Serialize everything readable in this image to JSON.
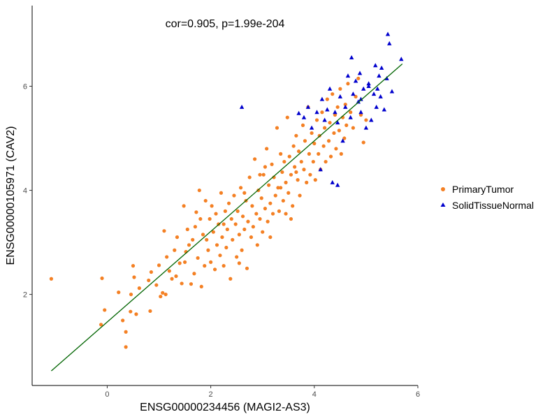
{
  "chart_data": {
    "type": "scatter",
    "title": "",
    "annotation": "cor=0.905, p=1.99e-204",
    "xlabel": "ENSG00000234456 (MAGI2-AS3)",
    "ylabel": "ENSG00000105971 (CAV2)",
    "xlim": [
      -1.45,
      6.0
    ],
    "ylim": [
      0.25,
      7.55
    ],
    "x_ticks": [
      0,
      2,
      4,
      6
    ],
    "y_ticks": [
      2,
      4,
      6
    ],
    "grid": false,
    "legend_position": "right",
    "regression_line": {
      "color": "#006400",
      "x": [
        -1.08,
        5.7
      ],
      "y": [
        0.53,
        6.43
      ]
    },
    "series": [
      {
        "name": "PrimaryTumor",
        "marker": "circle",
        "color": "#F48024",
        "points": [
          [
            -1.08,
            2.3
          ],
          [
            -0.1,
            2.31
          ],
          [
            -0.05,
            1.7
          ],
          [
            -0.12,
            1.42
          ],
          [
            0.22,
            2.04
          ],
          [
            0.3,
            1.5
          ],
          [
            0.36,
            1.28
          ],
          [
            0.36,
            0.99
          ],
          [
            0.45,
            1.67
          ],
          [
            0.46,
            2.0
          ],
          [
            0.5,
            2.55
          ],
          [
            0.52,
            2.33
          ],
          [
            0.56,
            1.62
          ],
          [
            0.62,
            2.12
          ],
          [
            0.8,
            2.27
          ],
          [
            0.83,
            1.68
          ],
          [
            0.85,
            2.43
          ],
          [
            0.95,
            2.18
          ],
          [
            1.0,
            2.56
          ],
          [
            1.03,
            1.96
          ],
          [
            1.07,
            2.03
          ],
          [
            1.1,
            3.22
          ],
          [
            1.13,
            2.0
          ],
          [
            1.15,
            2.72
          ],
          [
            1.2,
            2.45
          ],
          [
            1.25,
            2.3
          ],
          [
            1.3,
            2.85
          ],
          [
            1.33,
            2.35
          ],
          [
            1.35,
            3.1
          ],
          [
            1.4,
            2.6
          ],
          [
            1.44,
            2.21
          ],
          [
            1.48,
            3.7
          ],
          [
            1.5,
            2.62
          ],
          [
            1.52,
            2.82
          ],
          [
            1.55,
            3.25
          ],
          [
            1.58,
            2.95
          ],
          [
            1.62,
            2.2
          ],
          [
            1.65,
            3.05
          ],
          [
            1.68,
            2.4
          ],
          [
            1.7,
            3.3
          ],
          [
            1.72,
            3.58
          ],
          [
            1.75,
            2.7
          ],
          [
            1.78,
            4.0
          ],
          [
            1.8,
            3.45
          ],
          [
            1.82,
            2.15
          ],
          [
            1.85,
            3.15
          ],
          [
            1.88,
            2.55
          ],
          [
            1.9,
            3.8
          ],
          [
            1.92,
            3.05
          ],
          [
            1.95,
            2.85
          ],
          [
            1.98,
            3.45
          ],
          [
            2.0,
            2.62
          ],
          [
            2.02,
            3.7
          ],
          [
            2.05,
            3.2
          ],
          [
            2.08,
            2.48
          ],
          [
            2.1,
            3.55
          ],
          [
            2.12,
            2.95
          ],
          [
            2.15,
            3.35
          ],
          [
            2.18,
            2.75
          ],
          [
            2.2,
            3.95
          ],
          [
            2.22,
            3.1
          ],
          [
            2.25,
            2.55
          ],
          [
            2.28,
            3.6
          ],
          [
            2.3,
            2.9
          ],
          [
            2.32,
            3.25
          ],
          [
            2.35,
            3.75
          ],
          [
            2.38,
            2.3
          ],
          [
            2.4,
            3.45
          ],
          [
            2.42,
            3.05
          ],
          [
            2.45,
            3.9
          ],
          [
            2.48,
            3.35
          ],
          [
            2.5,
            2.72
          ],
          [
            2.52,
            3.6
          ],
          [
            2.55,
            3.15
          ],
          [
            2.58,
            4.05
          ],
          [
            2.6,
            2.85
          ],
          [
            2.62,
            3.5
          ],
          [
            2.65,
            3.25
          ],
          [
            2.68,
            3.8
          ],
          [
            2.7,
            2.5
          ],
          [
            2.72,
            3.4
          ],
          [
            2.75,
            4.25
          ],
          [
            2.78,
            3.1
          ],
          [
            2.8,
            3.7
          ],
          [
            2.82,
            3.3
          ],
          [
            2.85,
            4.6
          ],
          [
            2.88,
            3.55
          ],
          [
            2.9,
            2.95
          ],
          [
            2.92,
            4.0
          ],
          [
            2.95,
            3.45
          ],
          [
            2.98,
            3.85
          ],
          [
            3.0,
            3.2
          ],
          [
            3.02,
            4.3
          ],
          [
            3.05,
            3.65
          ],
          [
            3.08,
            4.8
          ],
          [
            3.1,
            3.4
          ],
          [
            3.12,
            4.1
          ],
          [
            3.15,
            3.75
          ],
          [
            3.18,
            4.5
          ],
          [
            3.2,
            3.55
          ],
          [
            3.22,
            4.25
          ],
          [
            3.25,
            3.9
          ],
          [
            3.28,
            5.2
          ],
          [
            3.3,
            4.05
          ],
          [
            3.32,
            3.6
          ],
          [
            3.35,
            4.7
          ],
          [
            3.38,
            4.35
          ],
          [
            3.4,
            3.8
          ],
          [
            3.42,
            4.55
          ],
          [
            3.45,
            4.15
          ],
          [
            3.48,
            5.4
          ],
          [
            3.5,
            3.95
          ],
          [
            3.52,
            4.65
          ],
          [
            3.55,
            4.3
          ],
          [
            3.58,
            3.7
          ],
          [
            3.6,
            4.85
          ],
          [
            3.62,
            4.45
          ],
          [
            3.65,
            5.05
          ],
          [
            3.68,
            4.2
          ],
          [
            3.7,
            4.75
          ],
          [
            3.72,
            3.9
          ],
          [
            3.75,
            4.55
          ],
          [
            3.78,
            5.25
          ],
          [
            3.8,
            4.4
          ],
          [
            3.82,
            4.95
          ],
          [
            3.85,
            4.15
          ],
          [
            3.88,
            5.6
          ],
          [
            3.9,
            4.7
          ],
          [
            3.92,
            4.3
          ],
          [
            3.95,
            5.1
          ],
          [
            3.98,
            4.55
          ],
          [
            4.0,
            4.9
          ],
          [
            4.02,
            4.2
          ],
          [
            4.05,
            5.35
          ],
          [
            4.08,
            4.7
          ],
          [
            4.1,
            5.05
          ],
          [
            4.12,
            4.4
          ],
          [
            4.15,
            5.5
          ],
          [
            4.18,
            4.85
          ],
          [
            4.2,
            5.2
          ],
          [
            4.22,
            4.55
          ],
          [
            4.25,
            5.75
          ],
          [
            4.28,
            4.95
          ],
          [
            4.3,
            5.3
          ],
          [
            4.32,
            4.65
          ],
          [
            4.35,
            5.85
          ],
          [
            4.38,
            5.1
          ],
          [
            4.4,
            5.45
          ],
          [
            4.42,
            4.8
          ],
          [
            4.45,
            5.6
          ],
          [
            4.48,
            5.15
          ],
          [
            4.5,
            5.95
          ],
          [
            4.52,
            4.7
          ],
          [
            4.55,
            5.4
          ],
          [
            4.58,
            5.0
          ],
          [
            4.6,
            5.65
          ],
          [
            4.62,
            5.25
          ],
          [
            4.65,
            6.05
          ],
          [
            4.7,
            5.5
          ],
          [
            4.75,
            5.2
          ],
          [
            4.8,
            5.8
          ],
          [
            4.85,
            6.15
          ],
          [
            4.9,
            5.45
          ],
          [
            4.95,
            4.92
          ],
          [
            5.0,
            5.35
          ],
          [
            2.25,
            3.35
          ],
          [
            2.65,
            3.95
          ],
          [
            3.05,
            4.45
          ],
          [
            3.35,
            4.05
          ],
          [
            3.65,
            4.35
          ],
          [
            2.95,
            4.3
          ],
          [
            3.55,
            3.45
          ],
          [
            3.15,
            3.1
          ],
          [
            2.55,
            2.6
          ],
          [
            3.45,
            3.55
          ]
        ]
      },
      {
        "name": "SolidTissueNormal",
        "marker": "triangle",
        "color": "#0000CD",
        "points": [
          [
            2.6,
            5.6
          ],
          [
            3.7,
            5.48
          ],
          [
            3.8,
            5.4
          ],
          [
            3.88,
            5.6
          ],
          [
            3.95,
            5.2
          ],
          [
            4.05,
            5.5
          ],
          [
            4.12,
            4.4
          ],
          [
            4.15,
            5.75
          ],
          [
            4.2,
            5.35
          ],
          [
            4.25,
            5.55
          ],
          [
            4.3,
            5.95
          ],
          [
            4.35,
            4.15
          ],
          [
            4.4,
            5.5
          ],
          [
            4.45,
            5.3
          ],
          [
            4.5,
            5.8
          ],
          [
            4.55,
            4.95
          ],
          [
            4.6,
            5.6
          ],
          [
            4.65,
            6.2
          ],
          [
            4.7,
            5.4
          ],
          [
            4.72,
            6.55
          ],
          [
            4.75,
            5.85
          ],
          [
            4.8,
            6.1
          ],
          [
            4.85,
            5.7
          ],
          [
            4.88,
            6.25
          ],
          [
            4.9,
            5.5
          ],
          [
            4.95,
            5.95
          ],
          [
            5.0,
            5.2
          ],
          [
            5.05,
            6.0
          ],
          [
            5.1,
            5.35
          ],
          [
            5.15,
            5.85
          ],
          [
            5.18,
            6.4
          ],
          [
            5.2,
            5.6
          ],
          [
            5.25,
            6.2
          ],
          [
            5.28,
            5.8
          ],
          [
            5.3,
            6.35
          ],
          [
            5.35,
            5.55
          ],
          [
            5.4,
            6.15
          ],
          [
            5.42,
            7.0
          ],
          [
            5.45,
            6.82
          ],
          [
            5.5,
            5.9
          ],
          [
            5.68,
            6.52
          ],
          [
            4.45,
            4.1
          ],
          [
            4.9,
            5.75
          ],
          [
            5.05,
            6.05
          ],
          [
            5.22,
            5.95
          ]
        ]
      }
    ]
  }
}
